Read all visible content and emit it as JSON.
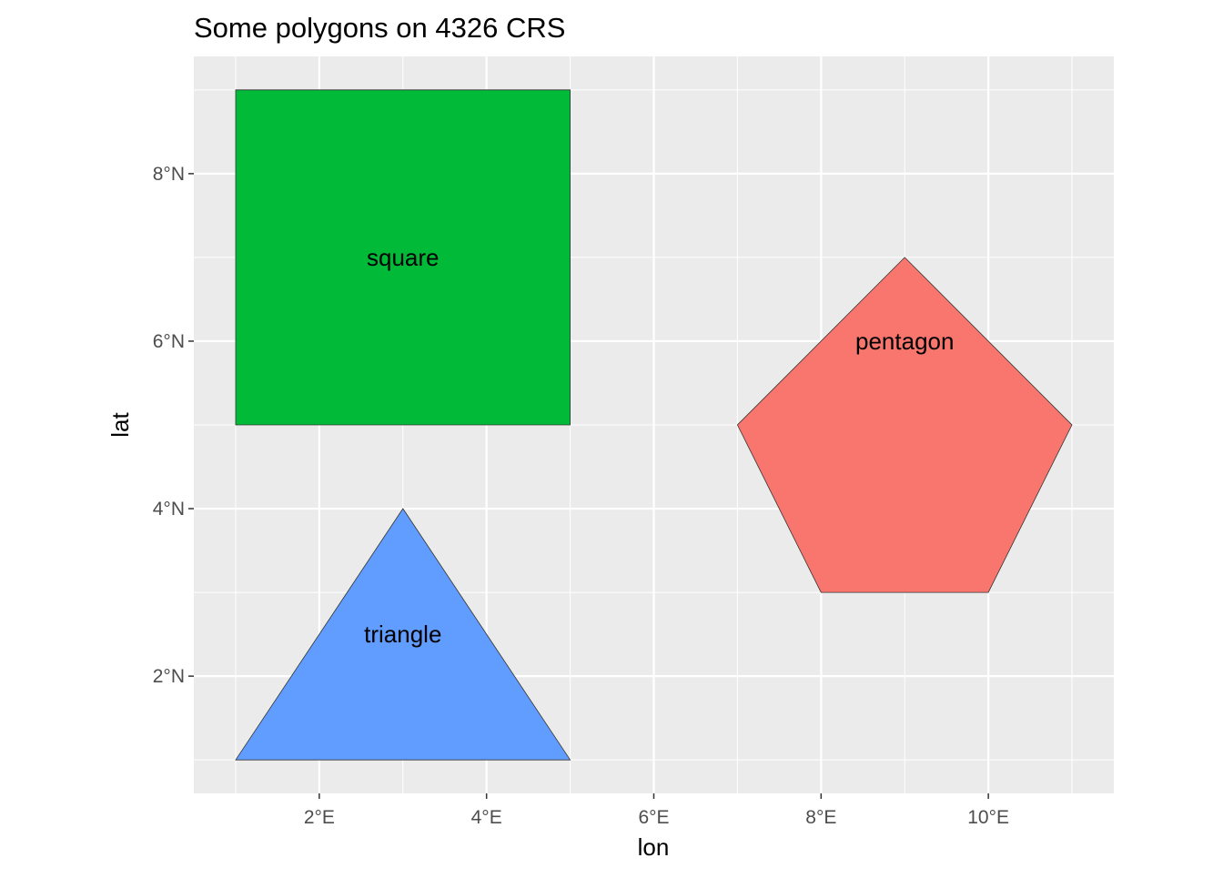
{
  "chart_data": {
    "type": "map",
    "title": "Some polygons on 4326 CRS",
    "xlabel": "lon",
    "ylabel": "lat",
    "xlim": [
      0.5,
      11.5
    ],
    "ylim": [
      0.6,
      9.4
    ],
    "grid": true,
    "legend": "none",
    "x_ticks": [
      {
        "value": 2,
        "label": "2°E"
      },
      {
        "value": 4,
        "label": "4°E"
      },
      {
        "value": 6,
        "label": "6°E"
      },
      {
        "value": 8,
        "label": "8°E"
      },
      {
        "value": 10,
        "label": "10°E"
      }
    ],
    "y_ticks": [
      {
        "value": 2,
        "label": "2°N"
      },
      {
        "value": 4,
        "label": "4°N"
      },
      {
        "value": 6,
        "label": "6°N"
      },
      {
        "value": 8,
        "label": "8°N"
      }
    ],
    "x_minor": [
      1,
      3,
      5,
      7,
      9,
      11
    ],
    "y_minor": [
      1,
      3,
      5,
      7,
      9
    ],
    "polygons": [
      {
        "label": "pentagon",
        "color": "#F8766D",
        "coords": [
          [
            8,
            3
          ],
          [
            10,
            3
          ],
          [
            11,
            5
          ],
          [
            9,
            7
          ],
          [
            7,
            5
          ]
        ],
        "label_at": [
          9,
          6
        ]
      },
      {
        "label": "square",
        "color": "#00BA38",
        "coords": [
          [
            1,
            5
          ],
          [
            5,
            5
          ],
          [
            5,
            9
          ],
          [
            1,
            9
          ]
        ],
        "label_at": [
          3,
          7
        ]
      },
      {
        "label": "triangle",
        "color": "#619CFF",
        "coords": [
          [
            1,
            1
          ],
          [
            5,
            1
          ],
          [
            3,
            4
          ]
        ],
        "label_at": [
          3,
          2.5
        ]
      }
    ]
  }
}
